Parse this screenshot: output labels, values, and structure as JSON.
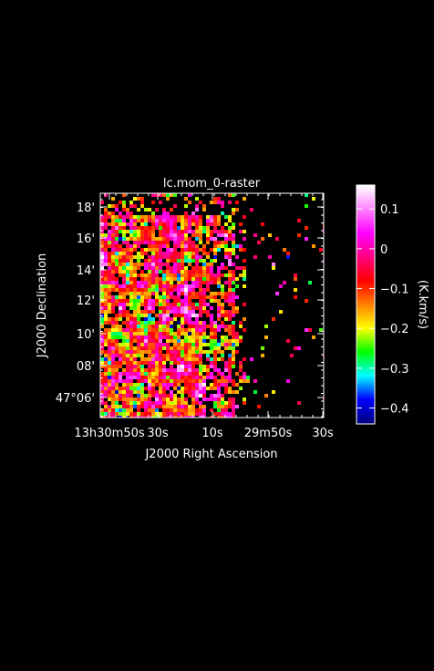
{
  "chart_data": {
    "type": "heatmap",
    "title": "lc.mom_0-raster",
    "xlabel": "J2000 Right Ascension",
    "ylabel": "J2000 Declination",
    "x_ticks": [
      {
        "label": "13h30m50s"
      },
      {
        "label": "30s"
      },
      {
        "label": "10s"
      },
      {
        "label": "29m50s"
      },
      {
        "label": "30s"
      }
    ],
    "y_ticks": [
      {
        "label": "18'"
      },
      {
        "label": "16'"
      },
      {
        "label": "14'"
      },
      {
        "label": "12'"
      },
      {
        "label": "10'"
      },
      {
        "label": "08'"
      },
      {
        "label": "47°06'"
      }
    ],
    "colorbar": {
      "label": "(K.km/s)",
      "range": [
        -0.44,
        0.16
      ],
      "ticks": [
        0.1,
        0,
        -0.1,
        -0.2,
        -0.3,
        -0.4
      ],
      "tick_labels": [
        "0.1",
        "0",
        "−0.1",
        "−0.2",
        "−0.3",
        "−0.4"
      ],
      "colors": [
        "#000080",
        "#0000ff",
        "#00ffff",
        "#00ff00",
        "#ffff00",
        "#ff8000",
        "#ff0000",
        "#ff0080",
        "#ff00ff",
        "#ff80ff",
        "#ffffff"
      ]
    },
    "grid": false,
    "background": "#000000"
  }
}
